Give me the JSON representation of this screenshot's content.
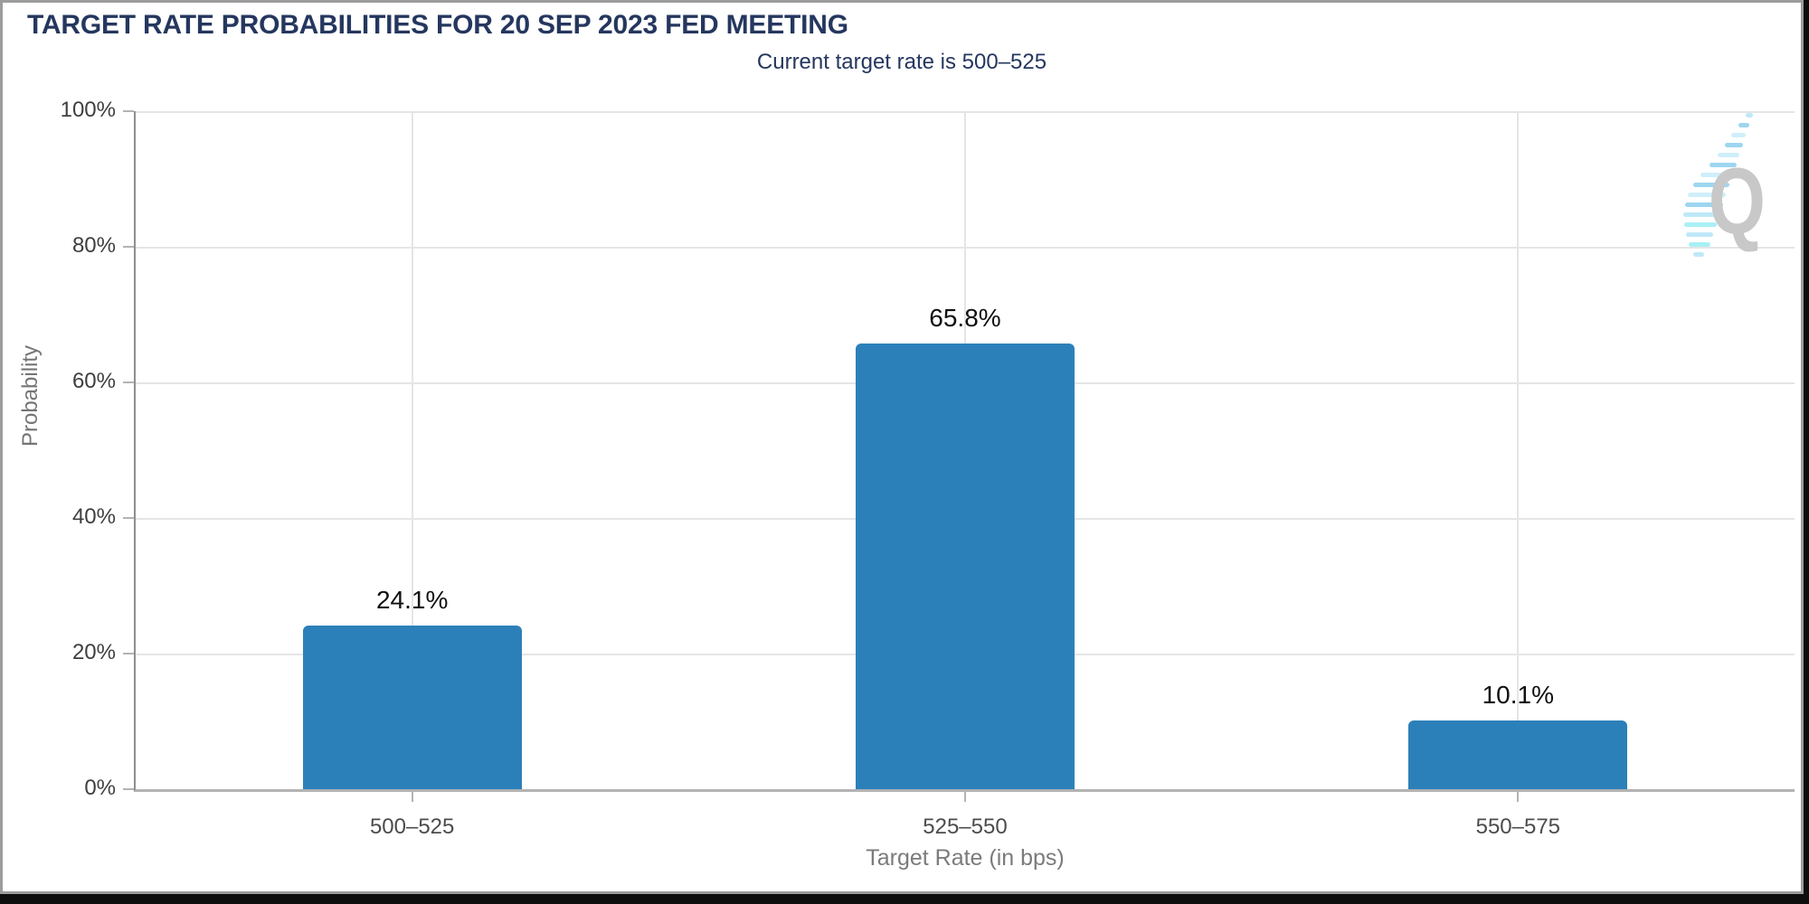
{
  "chart_data": {
    "type": "bar",
    "title": "TARGET RATE PROBABILITIES FOR 20 SEP 2023 FED MEETING",
    "subtitle": "Current target rate is 500–525",
    "categories": [
      "500–525",
      "525–550",
      "550–575"
    ],
    "values": [
      24.1,
      65.8,
      10.1
    ],
    "value_labels": [
      "24.1%",
      "65.8%",
      "10.1%"
    ],
    "xlabel": "Target Rate (in bps)",
    "ylabel": "Probability",
    "ylim": [
      0,
      100
    ],
    "ytick_step": 20,
    "ytick_labels": [
      "100%",
      "80%",
      "60%",
      "40%",
      "20%",
      "0%"
    ],
    "grid": true,
    "legend": false,
    "bar_color": "#2c80b9"
  },
  "colors": {
    "title_navy": "#25375f",
    "bar_blue": "#2c80b9",
    "gridline": "#e5e5e5",
    "axis_line": "#b3b3b3",
    "tick_text": "#3f3f3f",
    "axis_title_text": "#7b7b7b",
    "value_label_text": "#101010",
    "watermark_gray": "#c8c8c8",
    "watermark_blue": "#9dd6f0"
  },
  "watermark": {
    "letter": "Q"
  }
}
